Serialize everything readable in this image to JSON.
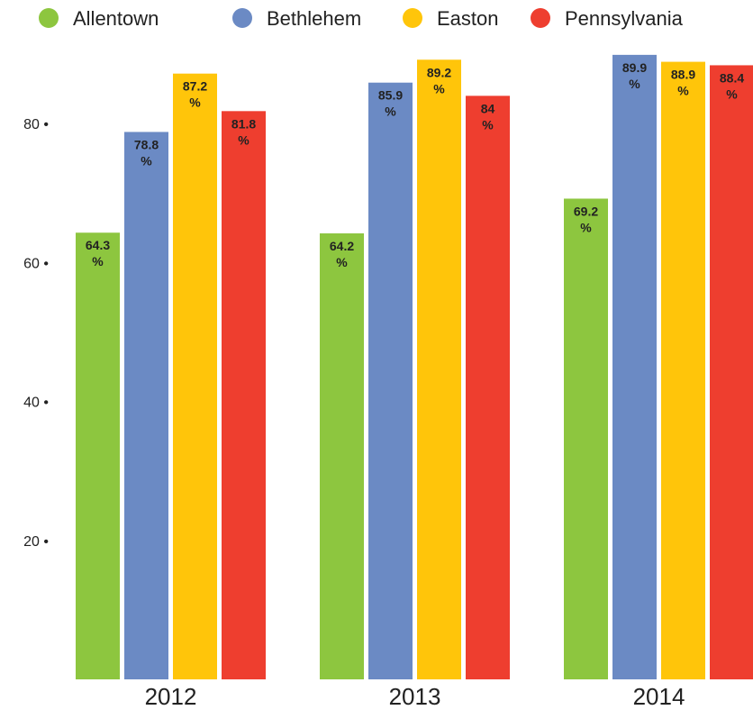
{
  "chart_data": {
    "type": "bar",
    "title": "",
    "xlabel": "",
    "ylabel": "",
    "categories": [
      "2012",
      "2013",
      "2014"
    ],
    "ylim": [
      0,
      90
    ],
    "yticks": [
      20,
      40,
      60,
      80
    ],
    "ytick_suffix": " •",
    "value_suffix": "%",
    "legend_position": "top",
    "grid": false,
    "series": [
      {
        "name": "Allentown",
        "color": "#8dc63f",
        "values": [
          64.3,
          64.2,
          69.2
        ]
      },
      {
        "name": "Bethlehem",
        "color": "#6b8ac4",
        "values": [
          78.8,
          85.9,
          89.9
        ]
      },
      {
        "name": "Easton",
        "color": "#ffc50a",
        "values": [
          87.2,
          89.2,
          88.9
        ]
      },
      {
        "name": "Pennsylvania",
        "color": "#ee3e2f",
        "values": [
          81.8,
          84,
          88.4
        ]
      }
    ]
  }
}
